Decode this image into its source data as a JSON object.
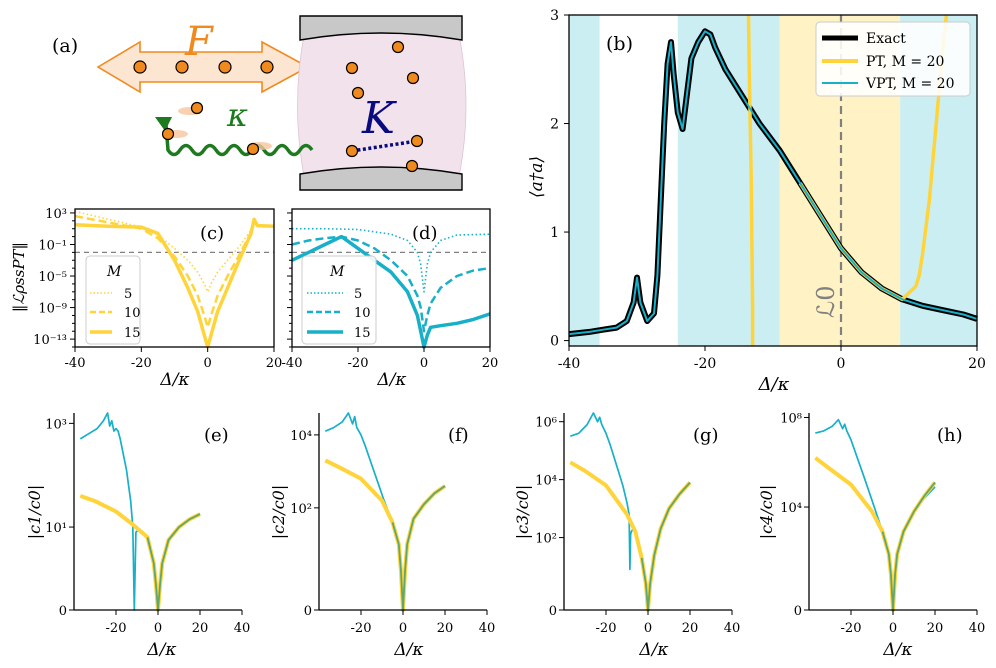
{
  "colors": {
    "exact": "#000000",
    "pt": "#FFD43B",
    "vpt": "#17B0C8",
    "band_cyan": "#CBEEF2",
    "band_yellow": "#FFF2C4",
    "dashed": "#808080",
    "force_orange": "#F08A1E",
    "loss_green": "#1E7A1E",
    "kerr_navy": "#0A0A80",
    "cavity_pink": "#F1E2EC",
    "mirror_gray": "#C8C8C8"
  },
  "panel_a": {
    "tag": "(a)",
    "force_label": "F",
    "loss_label": "κ",
    "kerr_label": "K"
  },
  "chart_data": [
    {
      "id": "b",
      "type": "line",
      "tag": "(b)",
      "xlabel": "Δ/κ",
      "ylabel": "⟨a†a⟩",
      "xlim": [
        -40,
        20
      ],
      "ylim": [
        -0.05,
        3
      ],
      "xticks": [
        -40,
        -20,
        0,
        20
      ],
      "yticks": [
        0,
        1,
        2,
        3
      ],
      "annotation": "ℒ0",
      "annotation_x": 0,
      "legend": [
        "Exact",
        "PT, M = 20",
        "VPT, M = 20"
      ],
      "legend_position": "top-right",
      "bands": [
        {
          "from": -40,
          "to": -35.5,
          "color": "cyan"
        },
        {
          "from": -24,
          "to": -9,
          "color": "cyan"
        },
        {
          "from": -9,
          "to": 8.7,
          "color": "yellow"
        },
        {
          "from": 8.7,
          "to": 20,
          "color": "cyan"
        }
      ],
      "series": [
        {
          "name": "Exact",
          "x": [
            -40,
            -37,
            -35,
            -33,
            -31.5,
            -30.5,
            -30,
            -29.5,
            -28.5,
            -27.5,
            -27,
            -26.5,
            -26,
            -25.5,
            -25,
            -24.6,
            -24,
            -23.3,
            -22.8,
            -22,
            -21,
            -20,
            -19.2,
            -18.5,
            -17,
            -15,
            -12,
            -9,
            -6,
            -3,
            0,
            3,
            6,
            9,
            12,
            15,
            18,
            20
          ],
          "y": [
            0.06,
            0.08,
            0.1,
            0.12,
            0.18,
            0.35,
            0.58,
            0.35,
            0.18,
            0.25,
            0.6,
            1.3,
            2.0,
            2.55,
            2.75,
            2.45,
            2.1,
            1.95,
            2.2,
            2.6,
            2.75,
            2.85,
            2.82,
            2.7,
            2.5,
            2.3,
            2.0,
            1.75,
            1.45,
            1.15,
            0.85,
            0.63,
            0.48,
            0.38,
            0.32,
            0.28,
            0.24,
            0.2
          ]
        },
        {
          "name": "PT, M = 20",
          "x": [
            -13,
            -13,
            -13.2,
            -13.5,
            -13.6,
            null,
            -6,
            -3,
            0,
            3,
            6,
            9,
            11,
            11.5,
            12,
            13,
            14,
            15,
            15.5
          ],
          "y": [
            -0.05,
            0.3,
            1.5,
            2.5,
            3.0,
            null,
            1.45,
            1.15,
            0.85,
            0.63,
            0.48,
            0.38,
            0.5,
            0.6,
            0.8,
            1.3,
            2.0,
            2.7,
            3.0
          ]
        },
        {
          "name": "VPT, M = 20",
          "x": [
            -40,
            -37,
            -35,
            -33,
            -31.5,
            -30.5,
            -30,
            -29.5,
            -28.5,
            -27.5,
            -27,
            -26.5,
            -26,
            -25.5,
            -25,
            -24.6,
            -24,
            -23.3,
            -22.8,
            -22,
            -21,
            -20,
            -19.2,
            -18.5,
            -17,
            -15,
            -12,
            -9,
            -6,
            -3,
            0,
            3,
            6,
            9,
            12,
            15,
            18,
            20
          ],
          "y": [
            0.06,
            0.08,
            0.1,
            0.12,
            0.18,
            0.35,
            0.58,
            0.35,
            0.18,
            0.25,
            0.6,
            1.3,
            2.0,
            2.55,
            2.75,
            2.45,
            2.1,
            1.95,
            2.2,
            2.6,
            2.75,
            2.85,
            2.82,
            2.7,
            2.5,
            2.3,
            2.0,
            1.75,
            1.45,
            1.15,
            0.85,
            0.63,
            0.48,
            0.38,
            0.32,
            0.28,
            0.24,
            0.2
          ]
        }
      ]
    },
    {
      "id": "c",
      "type": "line",
      "tag": "(c)",
      "xlabel": "Δ/κ",
      "ylabel": "‖ℒρssPT‖",
      "yscale": "log",
      "xlim": [
        -40,
        20
      ],
      "ylim_log10": [
        -14,
        3.5
      ],
      "xticks": [
        -40,
        -20,
        0,
        20
      ],
      "yticks_log10": [
        3,
        -1,
        -5,
        -9,
        -13
      ],
      "ytick_labels": [
        "10³",
        "10⁻¹",
        "10⁻⁵",
        "10⁻⁹",
        "10⁻¹³"
      ],
      "reference_line_log10": -2,
      "legend_title": "M",
      "legend": [
        "5",
        "10",
        "15"
      ],
      "legend_position": "lower-left",
      "series": [
        {
          "name": "5",
          "style": "dotted",
          "x": [
            -40,
            -30,
            -20,
            -15,
            -10,
            -6,
            -3,
            -1,
            0,
            1,
            3,
            6,
            10,
            13,
            14,
            15,
            20
          ],
          "y_log10": [
            3.2,
            2.2,
            1.2,
            0.2,
            -1.5,
            -3,
            -4.5,
            -6,
            -7,
            -6,
            -4.5,
            -3,
            -1,
            0.8,
            2.2,
            1.5,
            1.3
          ]
        },
        {
          "name": "10",
          "style": "dashed",
          "x": [
            -40,
            -30,
            -20,
            -15,
            -10,
            -6,
            -3,
            -1,
            0,
            1,
            3,
            6,
            10,
            13,
            14,
            15,
            20
          ],
          "y_log10": [
            2.6,
            1.8,
            1,
            -0.2,
            -2.5,
            -5,
            -7.5,
            -10,
            -11.5,
            -10,
            -7.5,
            -5,
            -2,
            0.5,
            2.2,
            1.4,
            1.3
          ]
        },
        {
          "name": "15",
          "style": "solid",
          "x": [
            -40,
            -30,
            -20,
            -15,
            -10,
            -6,
            -3,
            -1,
            0,
            1,
            3,
            6,
            10,
            13,
            14,
            15,
            20
          ],
          "y_log10": [
            1.5,
            1.3,
            1.2,
            0.4,
            -3,
            -6.5,
            -9.5,
            -12.5,
            -14,
            -12.5,
            -9.5,
            -6.5,
            -2.5,
            0.3,
            2.2,
            1.4,
            1.3
          ]
        }
      ]
    },
    {
      "id": "d",
      "type": "line",
      "tag": "(d)",
      "xlabel": "Δ/κ",
      "yscale": "log",
      "xlim": [
        -40,
        20
      ],
      "ylim_log10": [
        -14,
        3.5
      ],
      "xticks": [
        -40,
        -20,
        0,
        20
      ],
      "reference_line_log10": -2,
      "legend_title": "M",
      "legend": [
        "5",
        "10",
        "15"
      ],
      "legend_position": "lower-left",
      "series": [
        {
          "name": "5",
          "style": "dotted",
          "x": [
            -40,
            -30,
            -20,
            -10,
            -5,
            -2,
            -1,
            0,
            1,
            2,
            5,
            10,
            20
          ],
          "y_log10": [
            1,
            1,
            0.9,
            0.3,
            -0.5,
            -2,
            -3.5,
            -7,
            -3.5,
            -2,
            -0.5,
            0.2,
            0.3
          ]
        },
        {
          "name": "10",
          "style": "dashed",
          "x": [
            -40,
            -35,
            -30,
            -25,
            -20,
            -15,
            -10,
            -5,
            -2,
            -1,
            0,
            1,
            2,
            5,
            10,
            15,
            20
          ],
          "y_log10": [
            -1,
            -0.5,
            -0.2,
            0,
            -0.5,
            -1.5,
            -3,
            -5,
            -7.5,
            -9,
            -12,
            -10,
            -8.5,
            -6.5,
            -5,
            -4.3,
            -4
          ]
        },
        {
          "name": "15",
          "style": "solid",
          "x": [
            -40,
            -35,
            -30,
            -25,
            -20,
            -15,
            -10,
            -5,
            -2,
            -1,
            0,
            1,
            2,
            5,
            10,
            15,
            20
          ],
          "y_log10": [
            -3,
            -2,
            -1,
            0,
            -1.5,
            -3,
            -4.5,
            -7,
            -10,
            -12,
            -14,
            -12.5,
            -11.5,
            -11.3,
            -11,
            -10.5,
            -9.8
          ]
        }
      ]
    },
    {
      "id": "e",
      "type": "line",
      "tag": "(e)",
      "xlabel": "Δ/κ",
      "ylabel": "|c1/c0|",
      "yscale": "symlog",
      "xlim": [
        -40,
        40
      ],
      "ylim_log10": [
        -0.6,
        3.2
      ],
      "xticks": [
        -20,
        0,
        20,
        40
      ],
      "yticks_log10": [
        3,
        1
      ],
      "ytick_labels": [
        "10³",
        "10¹"
      ],
      "zero_label": "0",
      "series": [
        {
          "name": "PT",
          "x": [
            -37,
            -30,
            -20,
            -12,
            -5,
            -2,
            -1,
            0,
            1,
            2,
            5,
            10,
            15,
            20
          ],
          "y_log10": [
            1.6,
            1.5,
            1.3,
            1.05,
            0.8,
            0.3,
            -0.1,
            -0.6,
            -0.1,
            0.3,
            0.75,
            1,
            1.15,
            1.25
          ]
        },
        {
          "name": "VPT",
          "x": [
            -37,
            -33,
            -29,
            -26,
            -24,
            -23,
            -22,
            -21,
            -20,
            -19,
            -18,
            -17,
            -16,
            -15,
            -14,
            -13,
            -12,
            -11.3,
            -10.5,
            -9,
            -7,
            -5,
            -3,
            -2,
            -1,
            0,
            1,
            2,
            5,
            10,
            15,
            20
          ],
          "y_log10": [
            2.7,
            2.8,
            2.9,
            3.05,
            3.2,
            2.95,
            3.05,
            2.85,
            2.9,
            2.85,
            2.7,
            2.5,
            2.3,
            2.1,
            1.8,
            1.5,
            1.0,
            -0.6,
            0.9,
            0.95,
            0.9,
            0.8,
            0.5,
            0.3,
            -0.1,
            -0.6,
            -0.1,
            0.3,
            0.75,
            1,
            1.15,
            1.25
          ]
        }
      ]
    },
    {
      "id": "f",
      "type": "line",
      "tag": "(f)",
      "xlabel": "Δ/κ",
      "ylabel": "|c2/c0|",
      "yscale": "symlog",
      "xlim": [
        -40,
        40
      ],
      "ylim_log10": [
        -0.8,
        4.6
      ],
      "xticks": [
        -20,
        0,
        20,
        40
      ],
      "yticks_log10": [
        4,
        2
      ],
      "ytick_labels": [
        "10⁴",
        "10²"
      ],
      "zero_label": "0",
      "series": [
        {
          "name": "PT",
          "x": [
            -37,
            -30,
            -20,
            -10,
            -5,
            -2,
            -1,
            0,
            1,
            2,
            5,
            10,
            15,
            20
          ],
          "y_log10": [
            3.3,
            3.1,
            2.8,
            2.2,
            1.6,
            1.0,
            0.3,
            -0.8,
            0.3,
            1.0,
            1.7,
            2.1,
            2.4,
            2.6
          ]
        },
        {
          "name": "VPT",
          "x": [
            -37,
            -33,
            -29,
            -26,
            -24,
            -23,
            -22,
            -20,
            -18,
            -15,
            -12,
            -9,
            -7,
            -5,
            -2,
            -1,
            0,
            1,
            2,
            5,
            10,
            15,
            20
          ],
          "y_log10": [
            4.1,
            4.2,
            4.35,
            4.6,
            4.3,
            4.5,
            4.2,
            4.0,
            3.7,
            3.2,
            2.7,
            2.2,
            1.9,
            1.6,
            1.0,
            0.3,
            -0.8,
            0.3,
            1.0,
            1.7,
            2.1,
            2.4,
            2.6
          ]
        }
      ]
    },
    {
      "id": "g",
      "type": "line",
      "tag": "(g)",
      "xlabel": "Δ/κ",
      "ylabel": "|c3/c0|",
      "yscale": "symlog",
      "xlim": [
        -40,
        40
      ],
      "ylim_log10": [
        -0.5,
        6.3
      ],
      "xticks": [
        -20,
        0,
        20,
        40
      ],
      "yticks_log10": [
        6,
        4,
        2
      ],
      "ytick_labels": [
        "10⁶",
        "10⁴",
        "10²"
      ],
      "zero_label": "0",
      "series": [
        {
          "name": "PT",
          "x": [
            -37,
            -30,
            -20,
            -10,
            -6,
            -3,
            -1,
            0,
            1,
            3,
            6,
            10,
            15,
            20
          ],
          "y_log10": [
            4.6,
            4.3,
            3.8,
            2.8,
            2.2,
            1.3,
            0.4,
            -0.5,
            0.4,
            1.4,
            2.3,
            3.0,
            3.5,
            3.9
          ]
        },
        {
          "name": "VPT",
          "x": [
            -37,
            -33,
            -29,
            -26,
            -24,
            -23,
            -22,
            -20,
            -18,
            -15,
            -12,
            -10,
            -9,
            -8.6,
            -8.3,
            -8,
            -7,
            -6,
            -3,
            -1,
            0,
            1,
            3,
            6,
            10,
            15,
            20
          ],
          "y_log10": [
            5.5,
            5.6,
            5.9,
            6.3,
            6.0,
            6.15,
            5.9,
            5.6,
            5.2,
            4.5,
            3.8,
            3.2,
            2.8,
            0.9,
            2.1,
            2.2,
            2.3,
            2.2,
            1.3,
            0.4,
            -0.5,
            0.4,
            1.4,
            2.3,
            3.0,
            3.5,
            3.85
          ]
        }
      ]
    },
    {
      "id": "h",
      "type": "line",
      "tag": "(h)",
      "xlabel": "Δ/κ",
      "ylabel": "|c4/c0|",
      "yscale": "symlog",
      "xlim": [
        -40,
        40
      ],
      "ylim_log10": [
        -0.6,
        8.2
      ],
      "xticks": [
        -20,
        0,
        20,
        40
      ],
      "yticks_log10": [
        8,
        4
      ],
      "ytick_labels": [
        "10⁸",
        "10⁴"
      ],
      "zero_label": "0",
      "series": [
        {
          "name": "PT",
          "x": [
            -37,
            -30,
            -20,
            -10,
            -5,
            -2,
            -1,
            0,
            1,
            2,
            5,
            10,
            15,
            20
          ],
          "y_log10": [
            6.2,
            5.7,
            5.0,
            3.8,
            2.9,
            1.9,
            1.0,
            -0.6,
            1.0,
            1.9,
            2.9,
            3.8,
            4.5,
            5.1
          ]
        },
        {
          "name": "VPT",
          "x": [
            -37,
            -33,
            -29,
            -26,
            -24,
            -23,
            -22,
            -20,
            -17,
            -14,
            -10,
            -5,
            -2,
            -1,
            0,
            1,
            2,
            5,
            10,
            15,
            20
          ],
          "y_log10": [
            7.3,
            7.4,
            7.6,
            7.9,
            7.5,
            7.7,
            7.4,
            7.0,
            6.2,
            5.4,
            4.3,
            2.9,
            1.9,
            1.0,
            -0.6,
            1.0,
            1.9,
            2.9,
            3.8,
            4.4,
            4.9
          ]
        }
      ]
    }
  ]
}
